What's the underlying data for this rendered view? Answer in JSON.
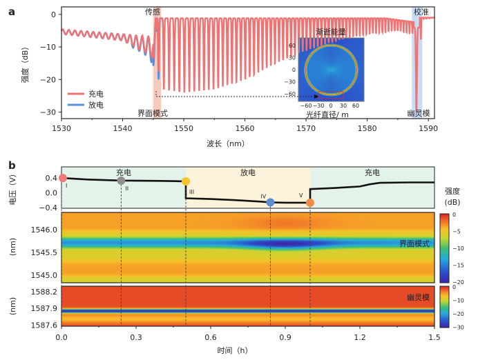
{
  "chart_data": [
    {
      "panel": "a",
      "type": "line",
      "xlabel": "波长（nm）",
      "ylabel": "强度（dB）",
      "xlim": [
        1530,
        1591
      ],
      "ylim": [
        -32,
        2.3
      ],
      "xticks": [
        1530,
        1540,
        1550,
        1560,
        1570,
        1580,
        1590
      ],
      "yticks": [
        0,
        -10,
        -20,
        -30
      ],
      "grid": false,
      "legend_placement": "bottom-left",
      "series": [
        {
          "name": "充电",
          "color": "#f07373",
          "dip_envelope": {
            "x": [
              1530,
              1540,
              1544,
              1545.5,
              1546.5,
              1550,
              1555,
              1560,
              1565,
              1570,
              1575,
              1580,
              1585,
              1587.5,
              1588,
              1589,
              1591
            ],
            "y": [
              -6,
              -8,
              -12,
              -14,
              -23,
              -24,
              -23,
              -20,
              -15,
              -11,
              -8,
              -6,
              -5,
              -6,
              -30,
              -1.5,
              -1
            ]
          }
        },
        {
          "name": "放电",
          "color": "#5b8fd6",
          "dip_envelope": {
            "x": [
              1542,
              1544,
              1545.5,
              1546.5
            ],
            "y": [
              -11,
              -13.5,
              -19,
              -23.5
            ]
          }
        }
      ],
      "annotations": [
        {
          "text": "传感",
          "band": [
            1545,
            1546.3
          ],
          "color": "#f6c9bd"
        },
        {
          "text": "校准",
          "band": [
            1587.3,
            1589
          ],
          "color": "#c9dcf3"
        },
        {
          "text": "界面模式"
        },
        {
          "text": "幽灵模"
        }
      ],
      "inset": {
        "title": "渐逝能量",
        "xlabel": "光纤直径/  m",
        "xticks": [
          -60,
          -30,
          0,
          30,
          60
        ],
        "yticks": [
          60,
          30,
          0,
          -30,
          -60
        ],
        "ring_radius": 62,
        "highlight_box": {
          "x": [
            -30,
            30
          ],
          "y": [
            -72,
            -55
          ],
          "color": "#d23030"
        }
      }
    },
    {
      "panel": "b",
      "type": "line",
      "xlabel": "时间（h）",
      "ylabel": "电压（V）",
      "xlim": [
        0,
        1.5
      ],
      "ylim": [
        -0.42,
        0.7
      ],
      "xticks": [
        0.0,
        0.3,
        0.6,
        0.9,
        1.2,
        1.5
      ],
      "xtick_labels": [
        "0.0",
        "0.3",
        "0.6",
        "0.9",
        "1.2",
        "1.5"
      ],
      "yticks": [
        0.4,
        0.0,
        -0.4
      ],
      "ytick_labels": [
        "0.4",
        "0.0",
        "−0.4"
      ],
      "voltage": {
        "x": [
          0,
          0.1,
          0.24,
          0.4,
          0.5,
          0.5,
          0.6,
          0.7,
          0.8,
          0.84,
          0.9,
          1.0,
          1.0,
          1.1,
          1.2,
          1.24,
          1.28,
          1.4,
          1.5
        ],
        "y": [
          0.4,
          0.36,
          0.33,
          0.32,
          0.31,
          -0.15,
          -0.17,
          -0.2,
          -0.24,
          -0.26,
          -0.27,
          -0.27,
          0.1,
          0.13,
          0.17,
          0.23,
          0.27,
          0.28,
          0.28
        ]
      },
      "regions": [
        {
          "label": "充电",
          "x": [
            0,
            0.5
          ],
          "color": "#e3f3ea"
        },
        {
          "label": "放电",
          "x": [
            0.5,
            1.0
          ],
          "color": "#fdf2da"
        },
        {
          "label": "充电",
          "x": [
            1.0,
            1.5
          ],
          "color": "#e3f3ea"
        }
      ],
      "markers": [
        {
          "label": "I",
          "x": 0.0,
          "y": 0.4,
          "color": "#f07a7a"
        },
        {
          "label": "II",
          "x": 0.24,
          "y": 0.33,
          "color": "#8f8f8f"
        },
        {
          "label": "III",
          "x": 0.5,
          "y": 0.31,
          "color": "#f6c230"
        },
        {
          "label": "IV",
          "x": 0.84,
          "y": -0.26,
          "color": "#5b8fd0"
        },
        {
          "label": "V",
          "x": 1.0,
          "y": -0.27,
          "color": "#f28a4a"
        }
      ]
    },
    {
      "panel": "b-heatmap-interface",
      "type": "heatmap",
      "label": "界面模式",
      "ylabel": "(nm)",
      "ylim": [
        1544.83,
        1546.38
      ],
      "yticks": [
        "1546.0",
        "1545.5",
        "1545.0"
      ],
      "yticks_values": [
        1546.0,
        1545.5,
        1545.0
      ],
      "dip_center_nm": 1545.72,
      "dip_depth_db": {
        "charge": -14,
        "discharge": -20
      },
      "colorbar": {
        "title": "强度",
        "unit": "(dB)",
        "range": [
          -20,
          0
        ],
        "ticks": [
          "0",
          "−5",
          "−10",
          "−15",
          "−20"
        ]
      }
    },
    {
      "panel": "b-heatmap-ghost",
      "type": "heatmap",
      "label": "幽灵模",
      "ylabel": "(nm)",
      "ylim": [
        1587.58,
        1588.3
      ],
      "yticks": [
        "1588.2",
        "1587.9",
        "1587.6"
      ],
      "yticks_values": [
        1588.2,
        1587.9,
        1587.6
      ],
      "dip_center_nm": 1587.86,
      "dip_depth_db": -30,
      "colorbar": {
        "range": [
          -30,
          0
        ],
        "ticks": [
          "0",
          "−10",
          "−20",
          "−30"
        ]
      }
    }
  ],
  "labels": {
    "a": "a",
    "b": "b",
    "unit_db": "(dB)",
    "colorbar_title": "强度"
  }
}
